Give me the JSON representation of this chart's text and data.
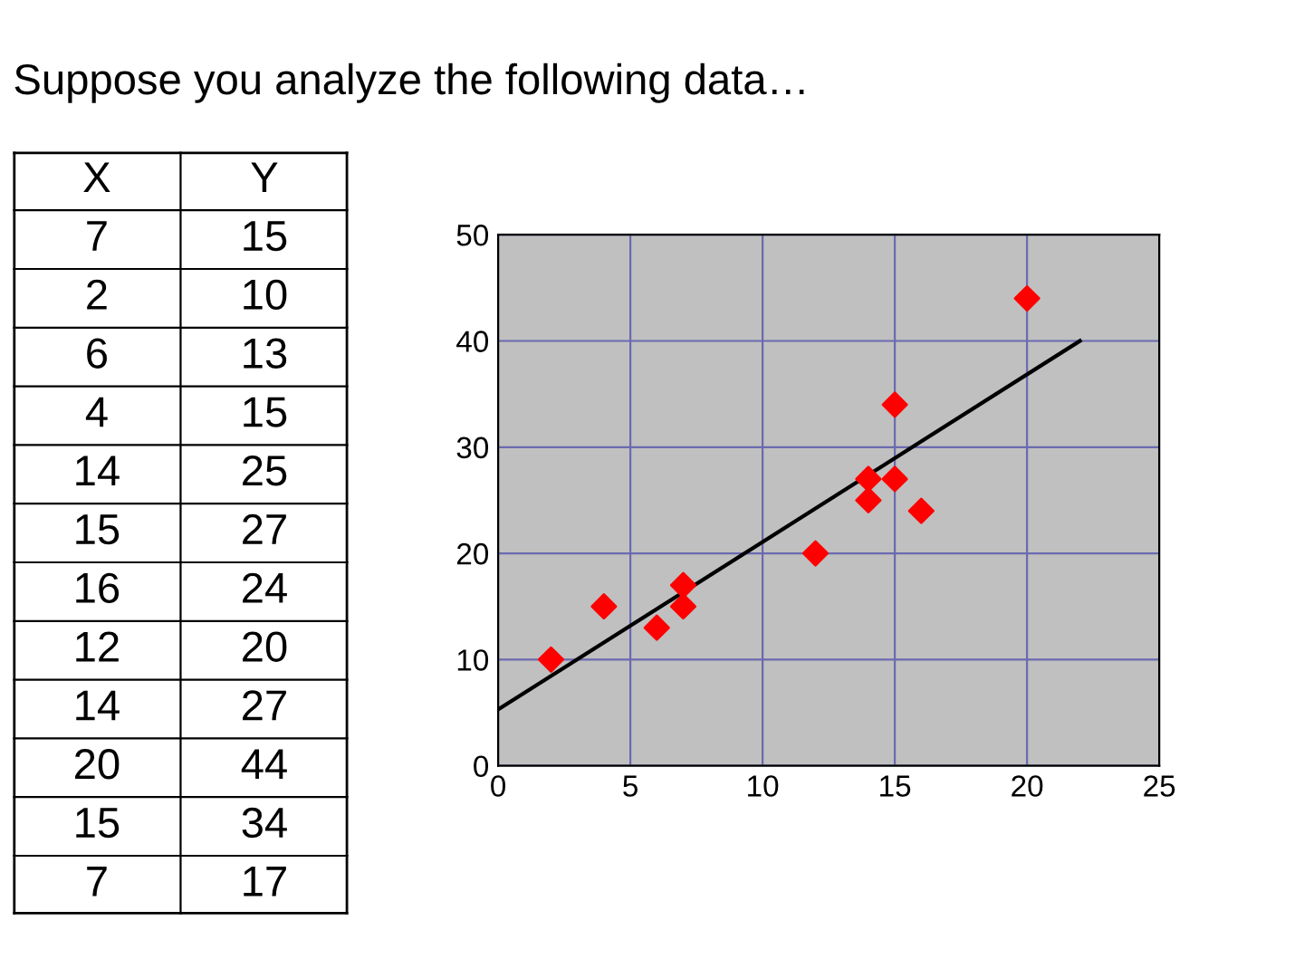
{
  "chart_data": [
    {
      "type": "other",
      "title": "Suppose you analyze the following data…",
      "annotations": [
        "X",
        "Y",
        "7",
        "15",
        "2",
        "10",
        "6",
        "13",
        "4",
        "15",
        "14",
        "25",
        "15",
        "27",
        "16",
        "24",
        "12",
        "20",
        "14",
        "27",
        "20",
        "44",
        "15",
        "34",
        "7",
        "17"
      ]
    },
    {
      "type": "scatter",
      "series": [
        {
          "type": "scatter",
          "color": "#ff0000",
          "marker": "diamond",
          "x": [
            7,
            2,
            6,
            4,
            14,
            15,
            16,
            12,
            14,
            20,
            15,
            7
          ],
          "values": [
            15,
            10,
            13,
            15,
            25,
            27,
            24,
            20,
            27,
            44,
            34,
            17
          ]
        },
        {
          "type": "line",
          "color": "#000000",
          "marker": "none",
          "x": [
            0,
            22
          ],
          "values": [
            5.3,
            40
          ]
        }
      ],
      "xlim": [
        0,
        25
      ],
      "ylim": [
        0,
        50
      ],
      "xticks": [
        0,
        5,
        10,
        15,
        20,
        25
      ],
      "yticks": [
        0,
        10,
        20,
        30,
        40,
        50
      ],
      "grid": true
    }
  ]
}
